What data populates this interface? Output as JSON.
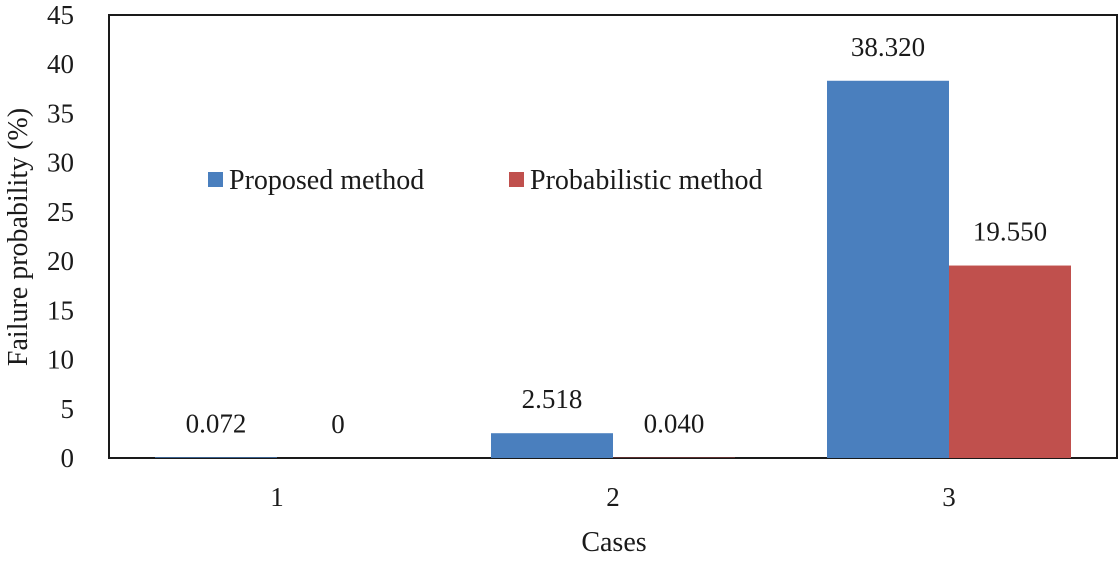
{
  "chart_data": {
    "type": "bar",
    "title": "",
    "xlabel": "Cases",
    "ylabel": "Failure probability (%)",
    "ylim": [
      0,
      45
    ],
    "yticks": [
      0,
      5,
      10,
      15,
      20,
      25,
      30,
      35,
      40,
      45
    ],
    "categories": [
      "1",
      "2",
      "3"
    ],
    "series": [
      {
        "name": "Proposed method",
        "color": "#4a7fbe",
        "values": [
          0.072,
          2.518,
          38.32
        ],
        "labels": [
          "0.072",
          "2.518",
          "38.320"
        ]
      },
      {
        "name": "Probabilistic method",
        "color": "#c0504d",
        "values": [
          0,
          0.04,
          19.55
        ],
        "labels": [
          "0",
          "0.040",
          "19.550"
        ]
      }
    ],
    "legend_position": "center-left",
    "grid": false
  }
}
